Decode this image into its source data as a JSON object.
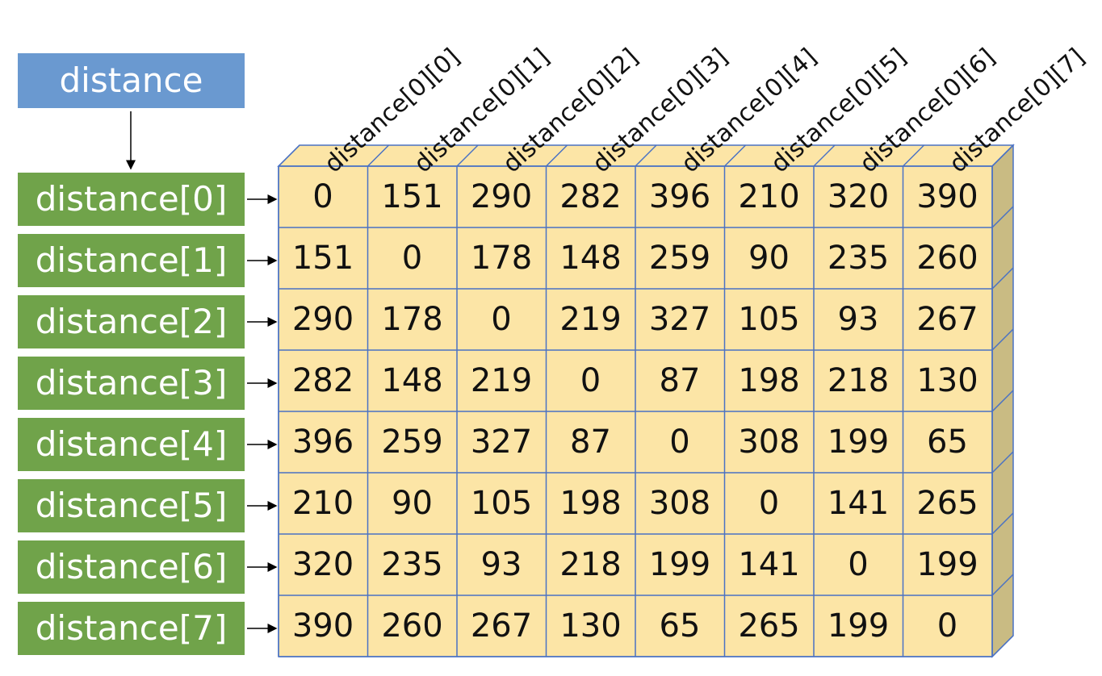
{
  "root_label": "distance",
  "row_labels": [
    "distance[0]",
    "distance[1]",
    "distance[2]",
    "distance[3]",
    "distance[4]",
    "distance[5]",
    "distance[6]",
    "distance[7]"
  ],
  "column_labels": [
    "distance[0][0]",
    "distance[0][1]",
    "distance[0][2]",
    "distance[0][3]",
    "distance[0][4]",
    "distance[0][5]",
    "distance[0][6]",
    "distance[0][7]"
  ],
  "matrix": [
    [
      "0",
      "151",
      "290",
      "282",
      "396",
      "210",
      "320",
      "390"
    ],
    [
      "151",
      "0",
      "178",
      "148",
      "259",
      "90",
      "235",
      "260"
    ],
    [
      "290",
      "178",
      "0",
      "219",
      "327",
      "105",
      "93",
      "267"
    ],
    [
      "282",
      "148",
      "219",
      "0",
      "87",
      "198",
      "218",
      "130"
    ],
    [
      "396",
      "259",
      "327",
      "87",
      "0",
      "308",
      "199",
      "65"
    ],
    [
      "210",
      "90",
      "105",
      "198",
      "308",
      "0",
      "141",
      "265"
    ],
    [
      "320",
      "235",
      "93",
      "218",
      "199",
      "141",
      "0",
      "199"
    ],
    [
      "390",
      "260",
      "267",
      "130",
      "65",
      "265",
      "199",
      "0"
    ]
  ],
  "colors": {
    "root_fill": "#6a99d0",
    "row_fill": "#70a34a",
    "cell_fill": "#fce5a6",
    "cell_side": "#c9bb83",
    "grid_line": "#4a72c4"
  }
}
